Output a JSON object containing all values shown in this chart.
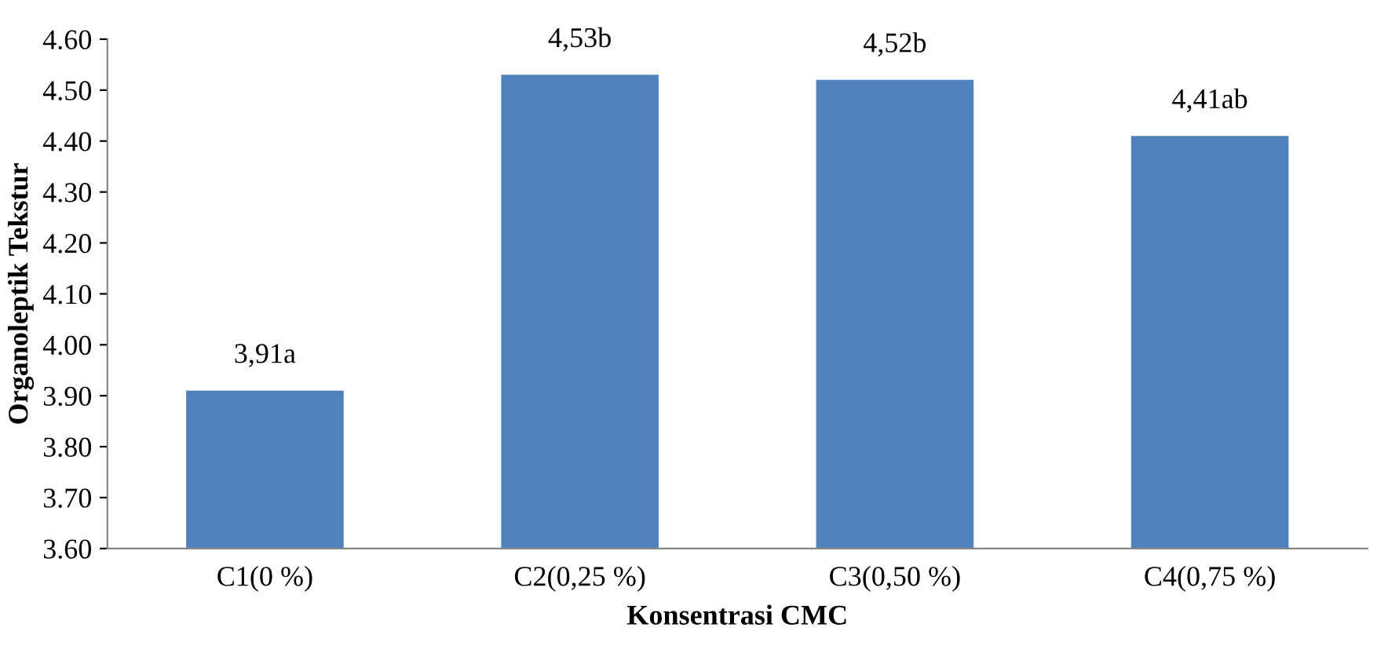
{
  "chart_data": {
    "type": "bar",
    "xlabel": "Konsentrasi CMC",
    "ylabel": "Organoleptik Tekstur",
    "categories": [
      "C1(0 %)",
      "C2(0,25 %)",
      "C3(0,50 %)",
      "C4(0,75 %)"
    ],
    "values": [
      3.91,
      4.53,
      4.52,
      4.41
    ],
    "value_labels": [
      "3,91a",
      "4,53b",
      "4,52b",
      "4,41ab"
    ],
    "color": "#4f81bd",
    "ylim": [
      3.6,
      4.6
    ],
    "yticks": [
      {
        "value": 3.6,
        "label": "3.60"
      },
      {
        "value": 3.7,
        "label": "3.70"
      },
      {
        "value": 3.8,
        "label": "3.80"
      },
      {
        "value": 3.9,
        "label": "3.90"
      },
      {
        "value": 4.0,
        "label": "4.00"
      },
      {
        "value": 4.1,
        "label": "4.10"
      },
      {
        "value": 4.2,
        "label": "4.20"
      },
      {
        "value": 4.3,
        "label": "4.30"
      },
      {
        "value": 4.4,
        "label": "4.40"
      },
      {
        "value": 4.5,
        "label": "4.50"
      },
      {
        "value": 4.6,
        "label": "4.60"
      }
    ],
    "grid": false
  }
}
